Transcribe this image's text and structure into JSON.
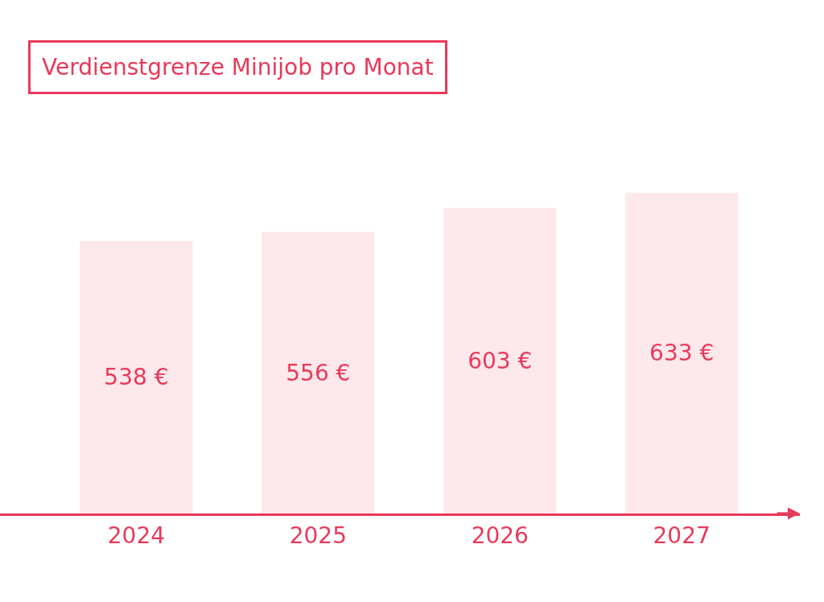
{
  "chart_data": {
    "type": "bar",
    "title": "Verdienstgrenze Minijob pro Monat",
    "categories": [
      "2024",
      "2025",
      "2026",
      "2027"
    ],
    "values": [
      538,
      556,
      603,
      633
    ],
    "value_labels": [
      "538 €",
      "556 €",
      "603 €",
      "633 €"
    ],
    "color": "#fde8ec"
  }
}
